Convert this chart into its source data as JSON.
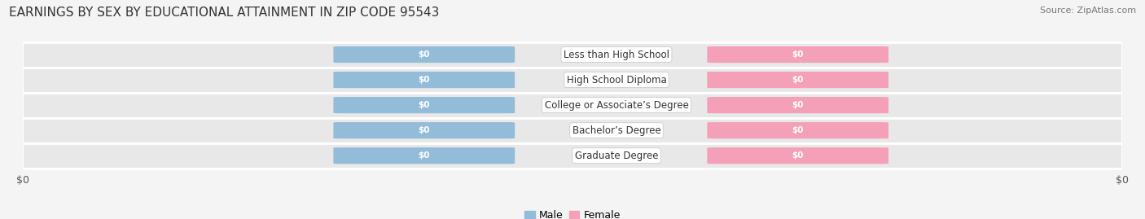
{
  "title": "EARNINGS BY SEX BY EDUCATIONAL ATTAINMENT IN ZIP CODE 95543",
  "source": "Source: ZipAtlas.com",
  "categories": [
    "Less than High School",
    "High School Diploma",
    "College or Associate’s Degree",
    "Bachelor’s Degree",
    "Graduate Degree"
  ],
  "male_color": "#92bcd8",
  "female_color": "#f4a0b8",
  "bar_label": "$0",
  "legend_male": "Male",
  "legend_female": "Female",
  "background_color": "#f4f4f4",
  "row_light": "#efefef",
  "row_dark": "#e8e8e8",
  "title_fontsize": 11,
  "source_fontsize": 8,
  "label_fontsize": 8.5,
  "bar_text_fontsize": 7.5,
  "tick_fontsize": 9
}
